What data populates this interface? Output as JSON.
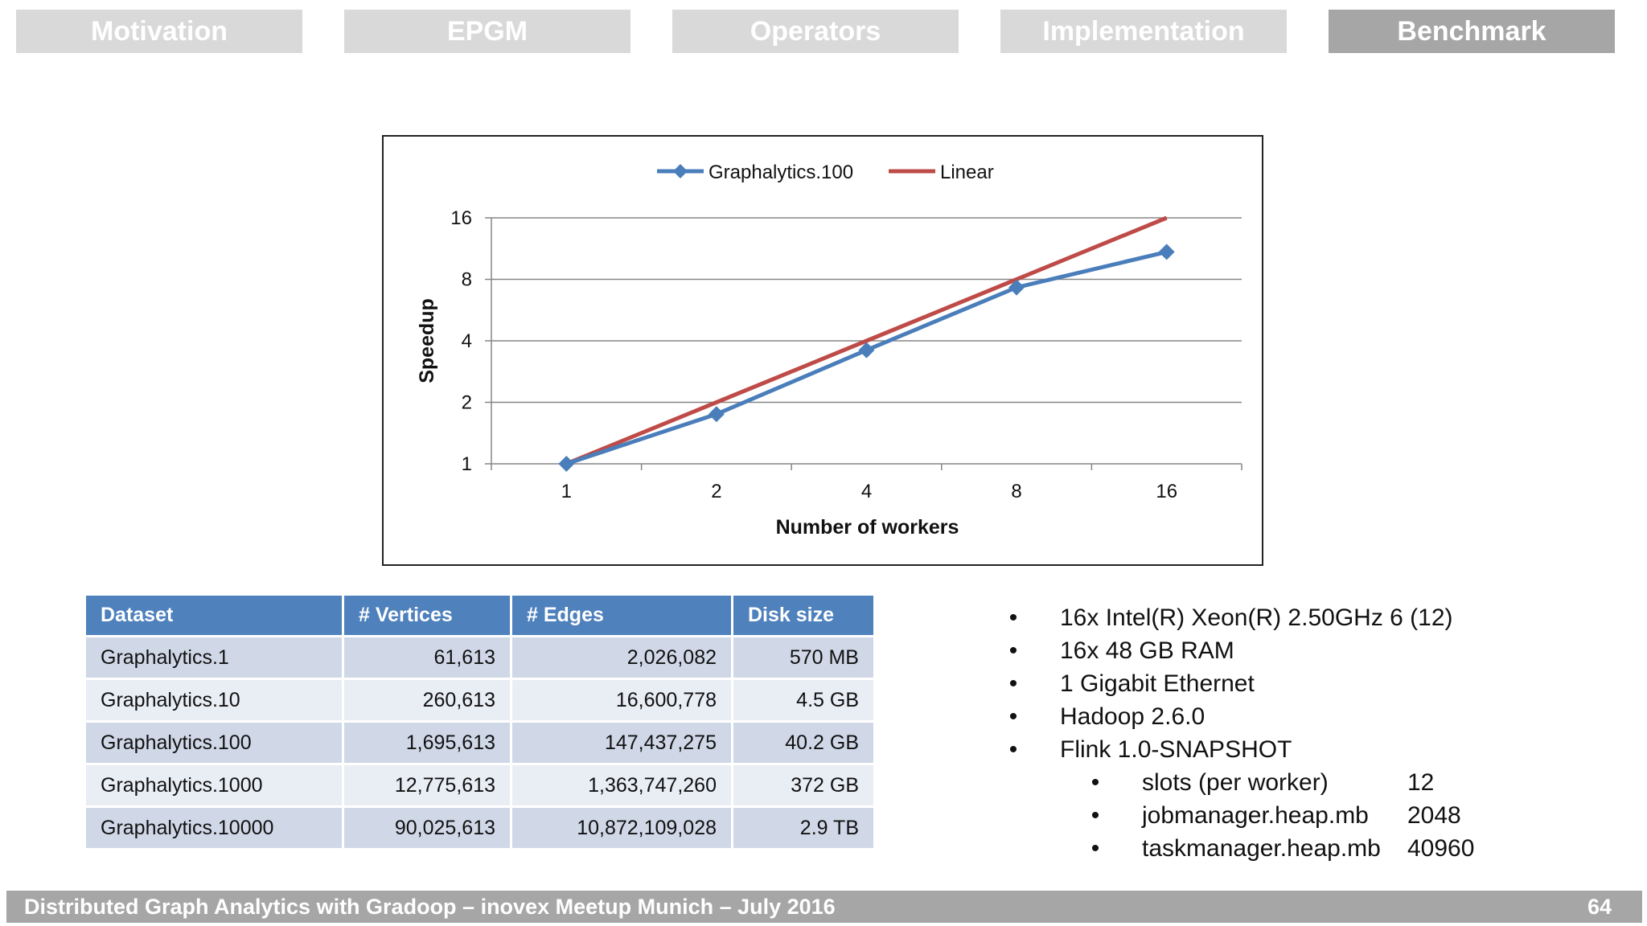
{
  "nav": {
    "tabs": [
      {
        "label": "Motivation",
        "active": false
      },
      {
        "label": "EPGM",
        "active": false
      },
      {
        "label": "Operators",
        "active": false
      },
      {
        "label": "Implementation",
        "active": false
      },
      {
        "label": "Benchmark",
        "active": true
      }
    ]
  },
  "chart_data": {
    "type": "line",
    "xlabel": "Number of workers",
    "ylabel": "Speedup",
    "x": [
      1,
      2,
      4,
      8,
      16
    ],
    "y_scale": "log2",
    "ylim": [
      1,
      16
    ],
    "yticks": [
      1,
      2,
      4,
      8,
      16
    ],
    "grid": true,
    "legend": "top",
    "series": [
      {
        "name": "Graphalytics.100",
        "values": [
          1,
          1.75,
          3.6,
          7.3,
          10.9
        ],
        "color": "#4a7ebb",
        "marker": "diamond"
      },
      {
        "name": "Linear",
        "values": [
          1,
          2,
          4,
          8,
          16
        ],
        "color": "#be4b48",
        "marker": "none"
      }
    ]
  },
  "table": {
    "headers": [
      "Dataset",
      "# Vertices",
      "# Edges",
      "Disk size"
    ],
    "rows": [
      [
        "Graphalytics.1",
        "61,613",
        "2,026,082",
        "570 MB"
      ],
      [
        "Graphalytics.10",
        "260,613",
        "16,600,778",
        "4.5 GB"
      ],
      [
        "Graphalytics.100",
        "1,695,613",
        "147,437,275",
        "40.2 GB"
      ],
      [
        "Graphalytics.1000",
        "12,775,613",
        "1,363,747,260",
        "372 GB"
      ],
      [
        "Graphalytics.10000",
        "90,025,613",
        "10,872,109,028",
        "2.9 TB"
      ]
    ]
  },
  "specs": {
    "bullet": "•",
    "items": [
      "16x Intel(R) Xeon(R) 2.50GHz 6 (12)",
      "16x 48 GB RAM",
      "1 Gigabit Ethernet",
      "Hadoop 2.6.0",
      "Flink 1.0-SNAPSHOT"
    ],
    "sub_items": [
      {
        "label": "slots (per worker)",
        "value": "12"
      },
      {
        "label": "jobmanager.heap.mb",
        "value": "2048"
      },
      {
        "label": "taskmanager.heap.mb",
        "value": "40960"
      }
    ]
  },
  "footer": {
    "title": "Distributed Graph Analytics with Gradoop – inovex Meetup Munich – July 2016",
    "page": "64"
  }
}
